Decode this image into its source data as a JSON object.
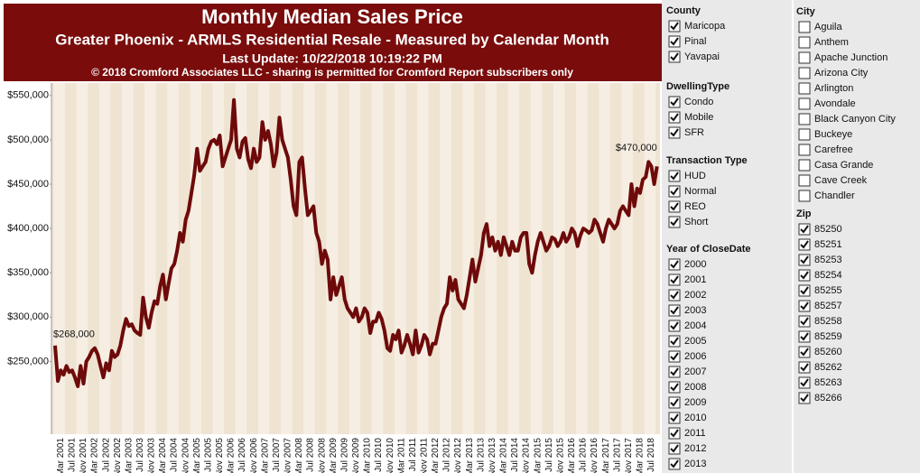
{
  "chart_data": {
    "type": "line",
    "title": "Monthly Median Sales Price",
    "subtitle": "Greater Phoenix - ARMLS Residential Resale - Measured by Calendar Month",
    "update_note": "Last Update: 10/22/2018 10:19:22 PM",
    "copyright": "© 2018 Cromford Associates LLC - sharing is permitted for Cromford Report subscribers only",
    "color": "#6e0a0a",
    "grid": false,
    "ylim": [
      168000,
      564000
    ],
    "yticks": [
      {
        "value": 250000,
        "label": "$250,000"
      },
      {
        "value": 300000,
        "label": "$300,000"
      },
      {
        "value": 350000,
        "label": "$350,000"
      },
      {
        "value": 400000,
        "label": "$400,000"
      },
      {
        "value": 450000,
        "label": "$450,000"
      },
      {
        "value": 500000,
        "label": "$500,000"
      },
      {
        "value": 550000,
        "label": "$550,000"
      }
    ],
    "categories": [
      null,
      null,
      "Mar 2001",
      null,
      null,
      null,
      "Jul 2001",
      null,
      null,
      null,
      "Nov 2001",
      null,
      null,
      null,
      "Mar 2002",
      null,
      null,
      null,
      "Jul 2002",
      null,
      null,
      null,
      "Nov 2002",
      null,
      null,
      null,
      "Mar 2003",
      null,
      null,
      null,
      "Jul 2003",
      null,
      null,
      null,
      "Nov 2003",
      null,
      null,
      null,
      "Mar 2004",
      null,
      null,
      null,
      "Jul 2004",
      null,
      null,
      null,
      "Nov 2004",
      null,
      null,
      null,
      "Mar 2005",
      null,
      null,
      null,
      "Jul 2005",
      null,
      null,
      null,
      "Nov 2005",
      null,
      null,
      null,
      "Mar 2006",
      null,
      null,
      null,
      "Jul 2006",
      null,
      null,
      null,
      "Nov 2006",
      null,
      null,
      null,
      "Mar 2007",
      null,
      null,
      null,
      "Jul 2007",
      null,
      null,
      null,
      "Nov 2007",
      null,
      null,
      null,
      "Mar 2008",
      null,
      null,
      null,
      "Jul 2008",
      null,
      null,
      null,
      "Nov 2008",
      null,
      null,
      null,
      "Mar 2009",
      null,
      null,
      null,
      "Jul 2009",
      null,
      null,
      null,
      "Nov 2009",
      null,
      null,
      null,
      "Mar 2010",
      null,
      null,
      null,
      "Jul 2010",
      null,
      null,
      null,
      "Nov 2010",
      null,
      null,
      null,
      "Mar 2011",
      null,
      null,
      null,
      "Jul 2011",
      null,
      null,
      null,
      "Nov 2011",
      null,
      null,
      null,
      "Mar 2012",
      null,
      null,
      null,
      "Jul 2012",
      null,
      null,
      null,
      "Nov 2012",
      null,
      null,
      null,
      "Mar 2013",
      null,
      null,
      null,
      "Jul 2013",
      null,
      null,
      null,
      "Nov 2013",
      null,
      null,
      null,
      "Mar 2014",
      null,
      null,
      null,
      "Jul 2014",
      null,
      null,
      null,
      "Nov 2014",
      null,
      null,
      null,
      "Mar 2015",
      null,
      null,
      null,
      "Jul 2015",
      null,
      null,
      null,
      "Nov 2015",
      null,
      null,
      null,
      "Mar 2016",
      null,
      null,
      null,
      "Jul 2016",
      null,
      null,
      null,
      "Nov 2016",
      null,
      null,
      null,
      "Mar 2017",
      null,
      null,
      null,
      "Jul 2017",
      null,
      null,
      null,
      "Nov 2017",
      null,
      null,
      null,
      "Mar 2018",
      null,
      null,
      null,
      "Jul 2018",
      null,
      null
    ],
    "values": [
      268000,
      228000,
      240000,
      235000,
      245000,
      238000,
      240000,
      232000,
      222000,
      245000,
      225000,
      250000,
      255000,
      262000,
      265000,
      258000,
      245000,
      232000,
      248000,
      240000,
      262000,
      255000,
      258000,
      268000,
      285000,
      298000,
      290000,
      292000,
      285000,
      282000,
      280000,
      322000,
      300000,
      288000,
      305000,
      318000,
      315000,
      335000,
      348000,
      320000,
      338000,
      355000,
      360000,
      375000,
      395000,
      385000,
      410000,
      420000,
      440000,
      460000,
      490000,
      465000,
      470000,
      475000,
      490000,
      498000,
      500000,
      495000,
      505000,
      470000,
      480000,
      490000,
      500000,
      545000,
      490000,
      480000,
      498000,
      502000,
      478000,
      468000,
      490000,
      475000,
      480000,
      520000,
      500000,
      510000,
      495000,
      470000,
      485000,
      525000,
      500000,
      490000,
      480000,
      455000,
      425000,
      415000,
      475000,
      480000,
      445000,
      415000,
      420000,
      425000,
      395000,
      385000,
      360000,
      375000,
      365000,
      320000,
      345000,
      325000,
      335000,
      345000,
      320000,
      310000,
      305000,
      300000,
      310000,
      295000,
      300000,
      310000,
      305000,
      282000,
      295000,
      295000,
      305000,
      298000,
      285000,
      265000,
      262000,
      280000,
      275000,
      285000,
      260000,
      268000,
      280000,
      270000,
      258000,
      285000,
      260000,
      268000,
      280000,
      275000,
      258000,
      270000,
      270000,
      285000,
      300000,
      310000,
      315000,
      345000,
      330000,
      342000,
      320000,
      315000,
      310000,
      325000,
      345000,
      365000,
      340000,
      355000,
      370000,
      395000,
      405000,
      380000,
      390000,
      375000,
      385000,
      370000,
      390000,
      380000,
      370000,
      385000,
      375000,
      375000,
      390000,
      395000,
      395000,
      360000,
      350000,
      370000,
      385000,
      395000,
      385000,
      375000,
      380000,
      390000,
      388000,
      380000,
      385000,
      395000,
      385000,
      390000,
      400000,
      395000,
      380000,
      392000,
      400000,
      398000,
      395000,
      398000,
      410000,
      405000,
      395000,
      385000,
      400000,
      410000,
      405000,
      400000,
      405000,
      420000,
      425000,
      420000,
      415000,
      450000,
      425000,
      445000,
      440000,
      455000,
      458000,
      475000,
      470000,
      450000,
      470000
    ],
    "value_labels": [
      "$268,000",
      null,
      null,
      null,
      null,
      null,
      null,
      null,
      null,
      null,
      null,
      null,
      null,
      null,
      null,
      null,
      null,
      null,
      null,
      null,
      null,
      null,
      null,
      null,
      null,
      null,
      null,
      null,
      null,
      null,
      null,
      null,
      null,
      null,
      null,
      null,
      null,
      null,
      null,
      null,
      null,
      null,
      null,
      null,
      null,
      null,
      null,
      null,
      null,
      null,
      null,
      null,
      null,
      null,
      null,
      null,
      null,
      null,
      null,
      null,
      null,
      null,
      null,
      null,
      null,
      null,
      null,
      null,
      null,
      null,
      null,
      null,
      null,
      null,
      null,
      null,
      null,
      null,
      null,
      null,
      null,
      null,
      null,
      null,
      null,
      null,
      null,
      null,
      null,
      null,
      null,
      null,
      null,
      null,
      null,
      null,
      null,
      null,
      null,
      null,
      null,
      null,
      null,
      null,
      null,
      null,
      null,
      null,
      null,
      null,
      null,
      null,
      null,
      null,
      null,
      null,
      null,
      null,
      null,
      null,
      null,
      null,
      null,
      null,
      null,
      null,
      null,
      null,
      null,
      null,
      null,
      null,
      null,
      null,
      null,
      null,
      null,
      null,
      null,
      null,
      null,
      null,
      null,
      null,
      null,
      null,
      null,
      null,
      null,
      null,
      null,
      null,
      null,
      null,
      null,
      null,
      null,
      null,
      null,
      null,
      null,
      null,
      null,
      null,
      null,
      null,
      null,
      null,
      null,
      null,
      null,
      null,
      null,
      null,
      null,
      null,
      null,
      null,
      null,
      null,
      null,
      null,
      null,
      null,
      null,
      null,
      null,
      null,
      null,
      null,
      null,
      null,
      null,
      null,
      null,
      null,
      null,
      null,
      null,
      null,
      null,
      null,
      null,
      null,
      null,
      null,
      null,
      null,
      null,
      null,
      null,
      null,
      "$470,000"
    ]
  },
  "filters": [
    {
      "title": "County",
      "items": [
        {
          "label": "Maricopa",
          "checked": true
        },
        {
          "label": "Pinal",
          "checked": true
        },
        {
          "label": "Yavapai",
          "checked": true
        }
      ]
    },
    {
      "title": "DwellingType",
      "items": [
        {
          "label": "Condo",
          "checked": true
        },
        {
          "label": "Mobile",
          "checked": true
        },
        {
          "label": "SFR",
          "checked": true
        }
      ]
    },
    {
      "title": "Transaction Type",
      "items": [
        {
          "label": "HUD",
          "checked": true
        },
        {
          "label": "Normal",
          "checked": true
        },
        {
          "label": "REO",
          "checked": true
        },
        {
          "label": "Short",
          "checked": true
        }
      ]
    },
    {
      "title": "Year of CloseDate",
      "items": [
        {
          "label": "2000",
          "checked": true
        },
        {
          "label": "2001",
          "checked": true
        },
        {
          "label": "2002",
          "checked": true
        },
        {
          "label": "2003",
          "checked": true
        },
        {
          "label": "2004",
          "checked": true
        },
        {
          "label": "2005",
          "checked": true
        },
        {
          "label": "2006",
          "checked": true
        },
        {
          "label": "2007",
          "checked": true
        },
        {
          "label": "2008",
          "checked": true
        },
        {
          "label": "2009",
          "checked": true
        },
        {
          "label": "2010",
          "checked": true
        },
        {
          "label": "2011",
          "checked": true
        },
        {
          "label": "2012",
          "checked": true
        },
        {
          "label": "2013",
          "checked": true
        }
      ]
    },
    {
      "title": "City",
      "items": [
        {
          "label": "Aguila",
          "checked": false
        },
        {
          "label": "Anthem",
          "checked": false
        },
        {
          "label": "Apache Junction",
          "checked": false
        },
        {
          "label": "Arizona City",
          "checked": false
        },
        {
          "label": "Arlington",
          "checked": false
        },
        {
          "label": "Avondale",
          "checked": false
        },
        {
          "label": "Black Canyon City",
          "checked": false
        },
        {
          "label": "Buckeye",
          "checked": false
        },
        {
          "label": "Carefree",
          "checked": false
        },
        {
          "label": "Casa Grande",
          "checked": false
        },
        {
          "label": "Cave Creek",
          "checked": false
        },
        {
          "label": "Chandler",
          "checked": false
        }
      ]
    },
    {
      "title": "Zip",
      "items": [
        {
          "label": "85250",
          "checked": true
        },
        {
          "label": "85251",
          "checked": true
        },
        {
          "label": "85253",
          "checked": true
        },
        {
          "label": "85254",
          "checked": true
        },
        {
          "label": "85255",
          "checked": true
        },
        {
          "label": "85257",
          "checked": true
        },
        {
          "label": "85258",
          "checked": true
        },
        {
          "label": "85259",
          "checked": true
        },
        {
          "label": "85260",
          "checked": true
        },
        {
          "label": "85262",
          "checked": true
        },
        {
          "label": "85263",
          "checked": true
        },
        {
          "label": "85266",
          "checked": true
        }
      ]
    }
  ]
}
